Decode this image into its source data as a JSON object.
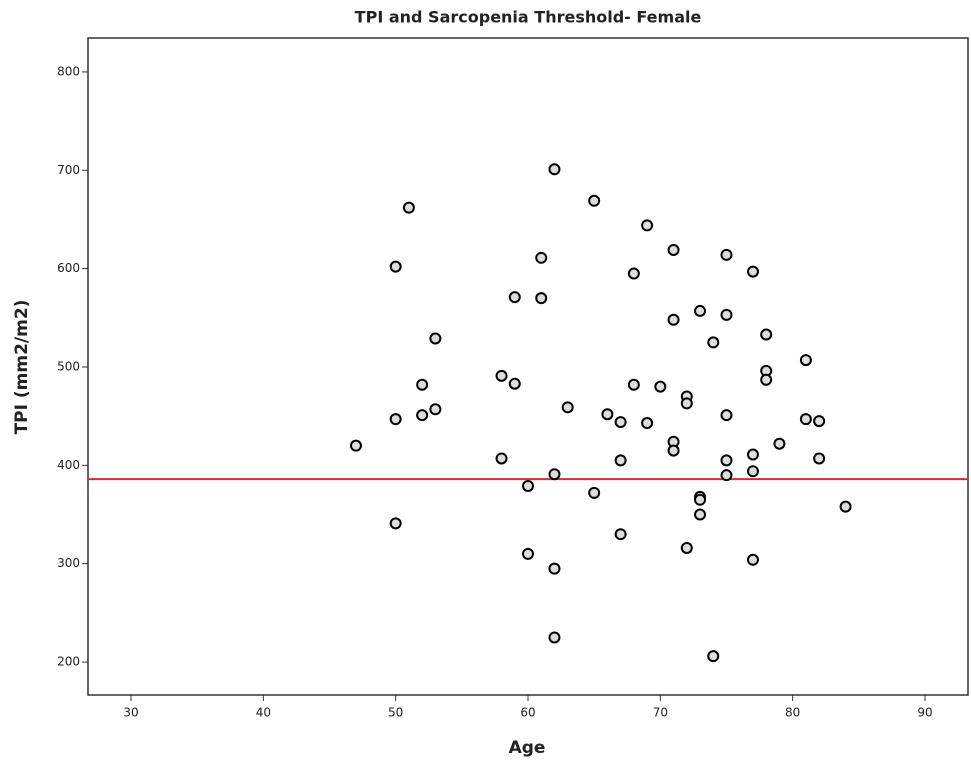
{
  "chart_data": {
    "type": "scatter",
    "title": "TPI and Sarcopenia Threshold- Female",
    "x_label": "Age",
    "y_label": "TPI (mm2/m2)",
    "x": [
      47,
      50,
      51,
      50,
      50,
      52,
      52,
      53,
      53,
      58,
      58,
      59,
      59,
      61,
      61,
      62,
      62,
      60,
      60,
      62,
      62,
      63,
      65,
      65,
      66,
      67,
      67,
      67,
      68,
      68,
      69,
      69,
      70,
      71,
      71,
      71,
      71,
      72,
      72,
      72,
      73,
      73,
      73,
      73,
      74,
      74,
      75,
      75,
      75,
      75,
      75,
      77,
      77,
      77,
      77,
      78,
      78,
      78,
      79,
      81,
      81,
      82,
      82,
      84
    ],
    "values": [
      420,
      602,
      662,
      447,
      341,
      482,
      451,
      457,
      529,
      491,
      407,
      571,
      483,
      611,
      570,
      701,
      391,
      379,
      310,
      295,
      225,
      459,
      669,
      372,
      452,
      444,
      405,
      330,
      595,
      482,
      644,
      443,
      480,
      619,
      548,
      424,
      415,
      470,
      463,
      316,
      557,
      368,
      365,
      350,
      525,
      206,
      614,
      553,
      451,
      405,
      390,
      597,
      411,
      394,
      304,
      533,
      496,
      487,
      422,
      507,
      447,
      445,
      407,
      358
    ],
    "marker_fill": "#dddddd",
    "marker_stroke": "#000000",
    "threshold": 386,
    "threshold_color": "#e8262a",
    "xlim": [
      26.75,
      93.25
    ],
    "ylim": [
      166.5,
      834.5
    ],
    "xticks": [
      30,
      40,
      50,
      60,
      70,
      80,
      90
    ],
    "yticks": [
      200,
      300,
      400,
      500,
      600,
      700,
      800
    ]
  }
}
